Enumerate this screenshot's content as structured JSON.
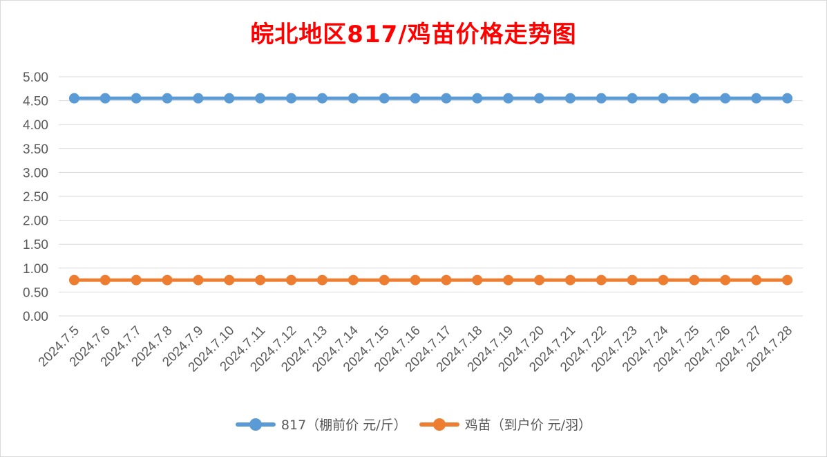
{
  "chart_data": {
    "type": "line",
    "title": "皖北地区817/鸡苗价格走势图",
    "categories": [
      "2024.7.5",
      "2024.7.6",
      "2024.7.7",
      "2024.7.8",
      "2024.7.9",
      "2024.7.10",
      "2024.7.11",
      "2024.7.12",
      "2024.7.13",
      "2024.7.14",
      "2024.7.15",
      "2024.7.16",
      "2024.7.17",
      "2024.7.18",
      "2024.7.19",
      "2024.7.20",
      "2024.7.21",
      "2024.7.22",
      "2024.7.23",
      "2024.7.24",
      "2024.7.25",
      "2024.7.26",
      "2024.7.27",
      "2024.7.28"
    ],
    "ylim": [
      0,
      5
    ],
    "yticks": [
      "0.00",
      "0.50",
      "1.00",
      "1.50",
      "2.00",
      "2.50",
      "3.00",
      "3.50",
      "4.00",
      "4.50",
      "5.00"
    ],
    "grid": true,
    "legend_position": "bottom",
    "series": [
      {
        "name": "817（棚前价 元/斤）",
        "color": "#5b9bd5",
        "values": [
          4.55,
          4.55,
          4.55,
          4.55,
          4.55,
          4.55,
          4.55,
          4.55,
          4.55,
          4.55,
          4.55,
          4.55,
          4.55,
          4.55,
          4.55,
          4.55,
          4.55,
          4.55,
          4.55,
          4.55,
          4.55,
          4.55,
          4.55,
          4.55
        ]
      },
      {
        "name": "鸡苗（到户价 元/羽）",
        "color": "#ed7d31",
        "values": [
          0.75,
          0.75,
          0.75,
          0.75,
          0.75,
          0.75,
          0.75,
          0.75,
          0.75,
          0.75,
          0.75,
          0.75,
          0.75,
          0.75,
          0.75,
          0.75,
          0.75,
          0.75,
          0.75,
          0.75,
          0.75,
          0.75,
          0.75,
          0.75
        ]
      }
    ]
  }
}
